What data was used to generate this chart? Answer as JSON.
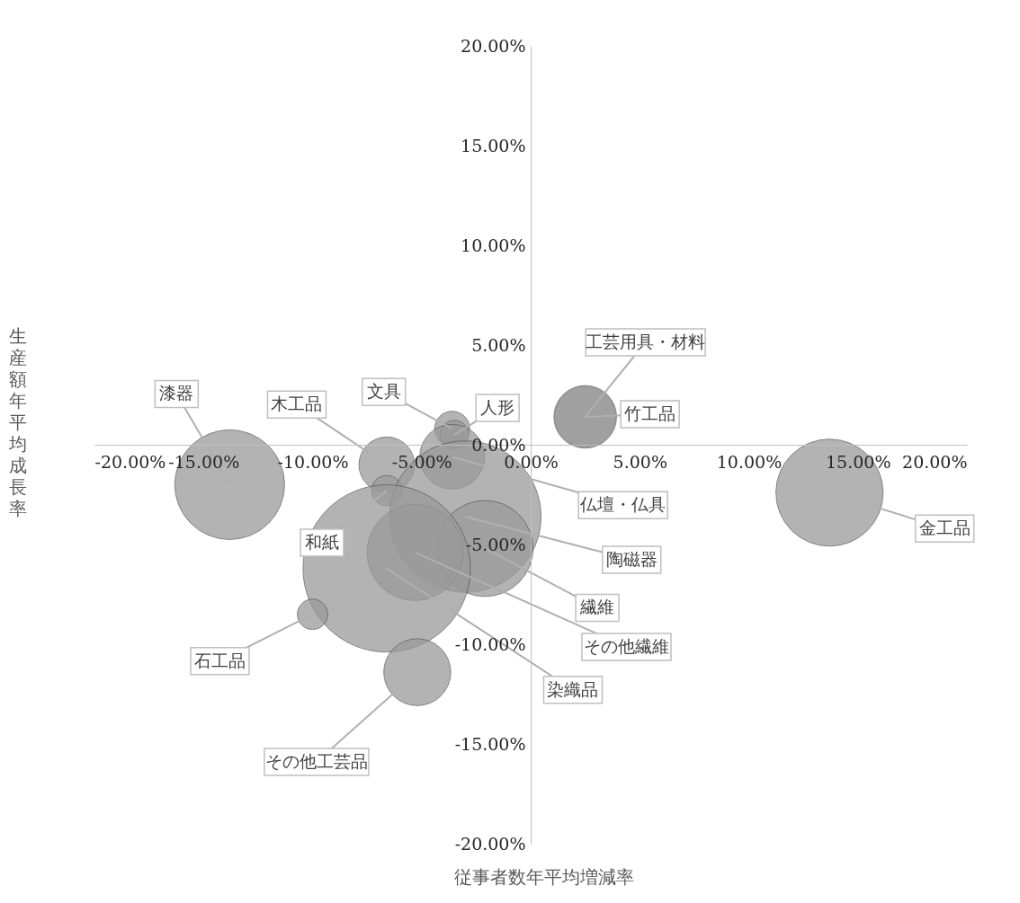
{
  "chart_data": {
    "type": "bubble",
    "xlabel": "従事者数年平均増減率",
    "ylabel": "生産額年平均成長率",
    "xlim": [
      -20,
      20
    ],
    "ylim": [
      -20,
      20
    ],
    "xticks": [
      {
        "value": -20,
        "label": "-20.00%"
      },
      {
        "value": -15,
        "label": "-15.00%"
      },
      {
        "value": -10,
        "label": "-10.00%"
      },
      {
        "value": -5,
        "label": "-5.00%"
      },
      {
        "value": 0,
        "label": "0.00%"
      },
      {
        "value": 5,
        "label": "5.00%"
      },
      {
        "value": 10,
        "label": "10.00%"
      },
      {
        "value": 15,
        "label": "15.00%"
      },
      {
        "value": 20,
        "label": "20.00%"
      }
    ],
    "yticks": [
      {
        "value": -20,
        "label": "-20.00%"
      },
      {
        "value": -15,
        "label": "-15.00%"
      },
      {
        "value": -10,
        "label": "-10.00%"
      },
      {
        "value": -5,
        "label": "-5.00%"
      },
      {
        "value": 0,
        "label": "0.00%"
      },
      {
        "value": 5,
        "label": "5.00%"
      },
      {
        "value": 10,
        "label": "10.00%"
      },
      {
        "value": 15,
        "label": "15.00%"
      },
      {
        "value": 20,
        "label": "20.00%"
      }
    ],
    "grid": false,
    "legend": false,
    "series": [
      {
        "name": "漆器",
        "color": "#9a9a9a",
        "x": [
          -13.8
        ],
        "values": [
          -2.0
        ],
        "sizes": [
          0.43
        ]
      },
      {
        "name": "金工品",
        "color": "#9a9a9a",
        "x": [
          13.7
        ],
        "values": [
          -2.4
        ],
        "sizes": [
          0.41
        ]
      },
      {
        "name": "工芸用具・材料",
        "color": "#9a9a9a",
        "x": [
          2.5
        ],
        "values": [
          1.4
        ],
        "sizes": [
          0.13
        ]
      },
      {
        "name": "竹工品",
        "color": "#9a9a9a",
        "x": [
          2.5
        ],
        "values": [
          1.4
        ],
        "sizes": [
          0.14
        ]
      },
      {
        "name": "木工品",
        "color": "#9a9a9a",
        "x": [
          -6.6
        ],
        "values": [
          -1.0
        ],
        "sizes": [
          0.11
        ]
      },
      {
        "name": "和紙",
        "color": "#9a9a9a",
        "x": [
          -6.6
        ],
        "values": [
          -2.3
        ],
        "sizes": [
          0.033
        ]
      },
      {
        "name": "文具",
        "color": "#9a9a9a",
        "x": [
          -3.6
        ],
        "values": [
          0.8
        ],
        "sizes": [
          0.044
        ]
      },
      {
        "name": "人形",
        "color": "#9a9a9a",
        "x": [
          -3.5
        ],
        "values": [
          0.5
        ],
        "sizes": [
          0.03
        ]
      },
      {
        "name": "仏壇・仏具",
        "color": "#9a9a9a",
        "x": [
          -3.6
        ],
        "values": [
          -0.6
        ],
        "sizes": [
          0.15
        ]
      },
      {
        "name": "陶磁器",
        "color": "#9a9a9a",
        "x": [
          -3.0
        ],
        "values": [
          -3.6
        ],
        "sizes": [
          0.82
        ]
      },
      {
        "name": "繊維",
        "color": "#9a9a9a",
        "x": [
          -2.1
        ],
        "values": [
          -5.2
        ],
        "sizes": [
          0.33
        ]
      },
      {
        "name": "その他繊維",
        "color": "#9a9a9a",
        "x": [
          -5.3
        ],
        "values": [
          -5.4
        ],
        "sizes": [
          0.33
        ]
      },
      {
        "name": "染織品",
        "color": "#9a9a9a",
        "x": [
          -6.6
        ],
        "values": [
          -6.2
        ],
        "sizes": [
          1
        ]
      },
      {
        "name": "石工品",
        "color": "#9a9a9a",
        "x": [
          -10.0
        ],
        "values": [
          -8.5
        ],
        "sizes": [
          0.033
        ]
      },
      {
        "name": "その他工芸品",
        "color": "#9a9a9a",
        "x": [
          -5.2
        ],
        "values": [
          -11.4
        ],
        "sizes": [
          0.16
        ]
      }
    ]
  }
}
